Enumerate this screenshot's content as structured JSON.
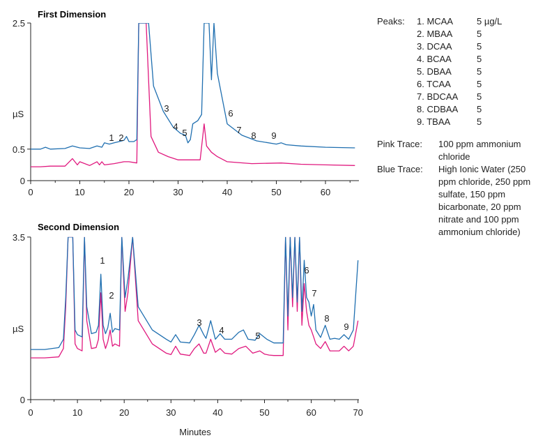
{
  "panels": [
    {
      "title": "First Dimension",
      "y_unit": "µS",
      "y_ticks": [
        "2.5",
        "0.5",
        "0"
      ],
      "x_ticks": [
        "0",
        "10",
        "20",
        "30",
        "40",
        "50",
        "60"
      ],
      "peak_labels": [
        "1",
        "2",
        "3",
        "4",
        "5",
        "6",
        "7",
        "8",
        "9"
      ]
    },
    {
      "title": "Second Dimension",
      "y_unit": "µS",
      "y_ticks": [
        "3.5",
        "0"
      ],
      "x_ticks": [
        "0",
        "10",
        "20",
        "30",
        "40",
        "50",
        "60",
        "70"
      ],
      "x_label": "Minutes",
      "peak_labels": [
        "1",
        "2",
        "3",
        "4",
        "5",
        "6",
        "7",
        "8",
        "9"
      ]
    }
  ],
  "legend": {
    "peaks_header": "Peaks:",
    "peaks": [
      {
        "name": "1. MCAA",
        "conc": "5 µg/L"
      },
      {
        "name": "2. MBAA",
        "conc": "5"
      },
      {
        "name": "3. DCAA",
        "conc": "5"
      },
      {
        "name": "4. BCAA",
        "conc": "5"
      },
      {
        "name": "5. DBAA",
        "conc": "5"
      },
      {
        "name": "6. TCAA",
        "conc": "5"
      },
      {
        "name": "7. BDCAA",
        "conc": "5"
      },
      {
        "name": "8. CDBAA",
        "conc": "5"
      },
      {
        "name": "9. TBAA",
        "conc": "5"
      }
    ],
    "traces": [
      {
        "label": "Pink Trace:",
        "desc": "100 ppm ammonium chloride",
        "color": "#e0187e"
      },
      {
        "label": "Blue Trace:",
        "desc": "High Ionic Water (250 ppm chloride, 250 ppm sulfate, 150 ppm bicarbonate, 20 ppm nitrate and 100 ppm ammonium chloride)",
        "color": "#1f6fb0"
      }
    ]
  },
  "chart_data": [
    {
      "type": "line",
      "title": "First Dimension",
      "xlabel": "",
      "ylabel": "µS",
      "xlim": [
        0,
        66
      ],
      "ylim": [
        0,
        2.5
      ],
      "series": [
        {
          "name": "Blue Trace",
          "color": "#1f6fb0",
          "x": [
            0,
            2,
            3,
            4,
            7,
            8.5,
            10,
            12,
            13.5,
            14.5,
            15,
            16,
            17,
            18,
            19,
            19.5,
            20,
            21,
            21.6,
            22,
            24,
            25,
            27,
            29,
            30.5,
            31.5,
            32,
            32.5,
            33,
            34,
            34.8,
            35.3,
            36.3,
            36.8,
            37.3,
            38,
            40,
            43,
            46,
            50,
            51,
            52,
            55,
            60,
            66
          ],
          "y": [
            0.5,
            0.5,
            0.53,
            0.5,
            0.51,
            0.55,
            0.52,
            0.51,
            0.55,
            0.53,
            0.6,
            0.58,
            0.6,
            0.62,
            0.64,
            0.7,
            0.62,
            0.62,
            0.65,
            2.5,
            2.5,
            1.5,
            1.1,
            0.85,
            0.75,
            0.72,
            0.6,
            0.65,
            0.9,
            0.95,
            1.05,
            2.5,
            2.5,
            1.6,
            2.5,
            1.7,
            0.9,
            0.72,
            0.63,
            0.58,
            0.6,
            0.57,
            0.55,
            0.53,
            0.52
          ]
        },
        {
          "name": "Pink Trace",
          "color": "#e0187e",
          "x": [
            0,
            2,
            4,
            7,
            8.5,
            9.5,
            10,
            12,
            13.5,
            14,
            14.5,
            15,
            17,
            19,
            20,
            21.6,
            22,
            23.5,
            24.5,
            26,
            28,
            30,
            32,
            34.5,
            35.3,
            35.8,
            36.8,
            38,
            40,
            45,
            51,
            55,
            60,
            66
          ],
          "y": [
            0.22,
            0.22,
            0.23,
            0.23,
            0.35,
            0.25,
            0.3,
            0.24,
            0.3,
            0.25,
            0.3,
            0.25,
            0.27,
            0.3,
            0.3,
            0.28,
            2.5,
            2.5,
            0.7,
            0.45,
            0.38,
            0.33,
            0.33,
            0.33,
            0.9,
            0.55,
            0.45,
            0.38,
            0.3,
            0.27,
            0.28,
            0.26,
            0.25,
            0.24
          ]
        }
      ]
    },
    {
      "type": "line",
      "title": "Second Dimension",
      "xlabel": "Minutes",
      "ylabel": "µS",
      "xlim": [
        0,
        70
      ],
      "ylim": [
        0,
        3.5
      ],
      "series": [
        {
          "name": "Blue Trace",
          "color": "#1f6fb0",
          "x": [
            0,
            3,
            6,
            7,
            7.5,
            8,
            8.5,
            9,
            9.5,
            10,
            11,
            11.5,
            12,
            13,
            14,
            14.5,
            15,
            15.5,
            16,
            16.5,
            17,
            17.5,
            18,
            19,
            19.5,
            20.2,
            20.8,
            21.8,
            23,
            26,
            29,
            30,
            31,
            32,
            34,
            35,
            36,
            37,
            37.5,
            38.5,
            39.5,
            40.5,
            41.5,
            43,
            44.5,
            45.5,
            46.5,
            48,
            49,
            50.5,
            52,
            54,
            54.5,
            55,
            55.5,
            56,
            56.5,
            57,
            57.5,
            58,
            58.5,
            59,
            59.5,
            60,
            60.5,
            61,
            62,
            63,
            64,
            65,
            66,
            67,
            68,
            69,
            70
          ],
          "y": [
            1.08,
            1.08,
            1.12,
            1.3,
            2.2,
            3.5,
            3.5,
            3.5,
            1.5,
            1.4,
            1.35,
            3.5,
            2.0,
            1.42,
            1.45,
            1.6,
            2.7,
            1.6,
            1.42,
            1.55,
            1.86,
            1.45,
            1.53,
            1.5,
            3.5,
            2.2,
            2.6,
            3.5,
            2.0,
            1.5,
            1.3,
            1.24,
            1.4,
            1.24,
            1.22,
            1.4,
            1.6,
            1.4,
            1.32,
            1.7,
            1.3,
            1.42,
            1.3,
            1.3,
            1.45,
            1.5,
            1.3,
            1.28,
            1.42,
            1.3,
            1.22,
            1.22,
            3.5,
            1.8,
            3.5,
            2.2,
            3.5,
            2.1,
            3.5,
            1.9,
            3.0,
            2.2,
            2.1,
            1.8,
            2.05,
            1.5,
            1.34,
            1.6,
            1.3,
            1.32,
            1.3,
            1.4,
            1.3,
            1.5,
            3.0
          ]
        },
        {
          "name": "Pink Trace",
          "color": "#e0187e",
          "x": [
            0,
            3,
            6,
            7,
            7.5,
            8,
            8.5,
            9,
            9.5,
            10,
            11,
            11.5,
            12,
            13,
            14,
            14.5,
            15,
            15.5,
            16,
            16.5,
            17,
            17.5,
            18,
            19,
            19.5,
            20.2,
            20.8,
            21.8,
            23,
            26,
            29,
            30,
            31,
            32,
            34,
            35,
            36,
            37,
            37.5,
            38.5,
            39.5,
            40.5,
            41.5,
            43,
            44.5,
            46,
            47.5,
            49,
            50,
            51,
            52,
            54,
            54.5,
            55,
            55.5,
            56,
            56.5,
            57,
            57.5,
            58,
            58.5,
            59,
            59.5,
            60,
            60.5,
            61,
            62,
            63,
            64,
            65,
            66,
            67,
            68,
            69,
            70
          ],
          "y": [
            0.9,
            0.9,
            0.92,
            1.1,
            2.0,
            3.5,
            3.5,
            3.5,
            1.2,
            1.1,
            1.05,
            3.5,
            1.7,
            1.1,
            1.12,
            1.3,
            2.3,
            1.3,
            1.1,
            1.25,
            1.5,
            1.15,
            1.2,
            1.15,
            3.5,
            1.9,
            2.3,
            3.5,
            1.7,
            1.2,
            1.0,
            0.97,
            1.15,
            0.98,
            0.95,
            1.1,
            1.2,
            1.0,
            1.0,
            1.3,
            1.02,
            1.1,
            1.0,
            0.98,
            1.1,
            1.15,
            1.0,
            1.05,
            0.98,
            0.96,
            0.95,
            0.95,
            3.5,
            1.5,
            3.5,
            2.0,
            3.5,
            1.9,
            3.5,
            1.6,
            2.5,
            1.9,
            1.6,
            1.5,
            1.35,
            1.2,
            1.1,
            1.25,
            1.05,
            1.05,
            1.05,
            1.15,
            1.05,
            1.15,
            1.7
          ]
        }
      ]
    }
  ]
}
